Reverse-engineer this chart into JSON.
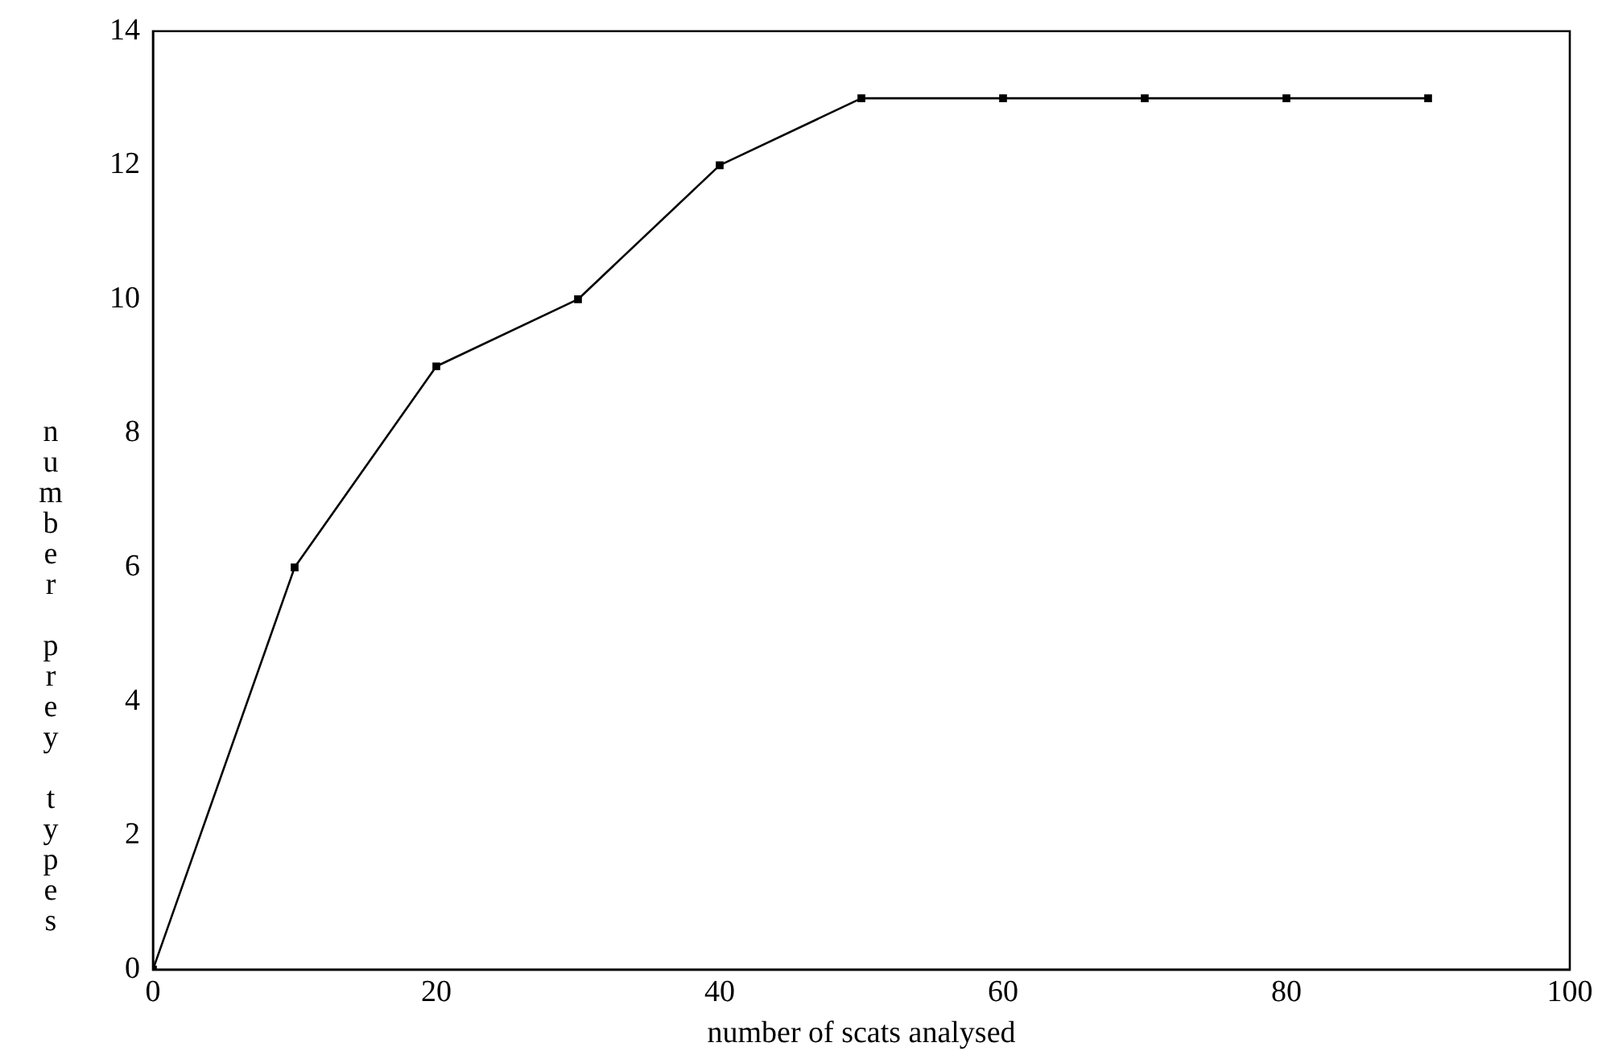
{
  "chart_data": {
    "type": "line",
    "xlabel": "number of scats analysed",
    "ylabel": "number prey types",
    "x": [
      0,
      10,
      20,
      30,
      40,
      50,
      60,
      70,
      80,
      90
    ],
    "series": [
      {
        "color": "#000000",
        "values": [
          0,
          6,
          9,
          10,
          12,
          13,
          13,
          13,
          13,
          13
        ]
      }
    ],
    "xlim": [
      0,
      100
    ],
    "xticks": [
      0,
      20,
      40,
      60,
      80,
      100
    ],
    "ylim": [
      0,
      14
    ],
    "yticks": [
      0,
      2,
      4,
      6,
      8,
      10,
      12,
      14
    ],
    "grid": false,
    "legend": false,
    "marker": "square",
    "line_style": "solid"
  }
}
